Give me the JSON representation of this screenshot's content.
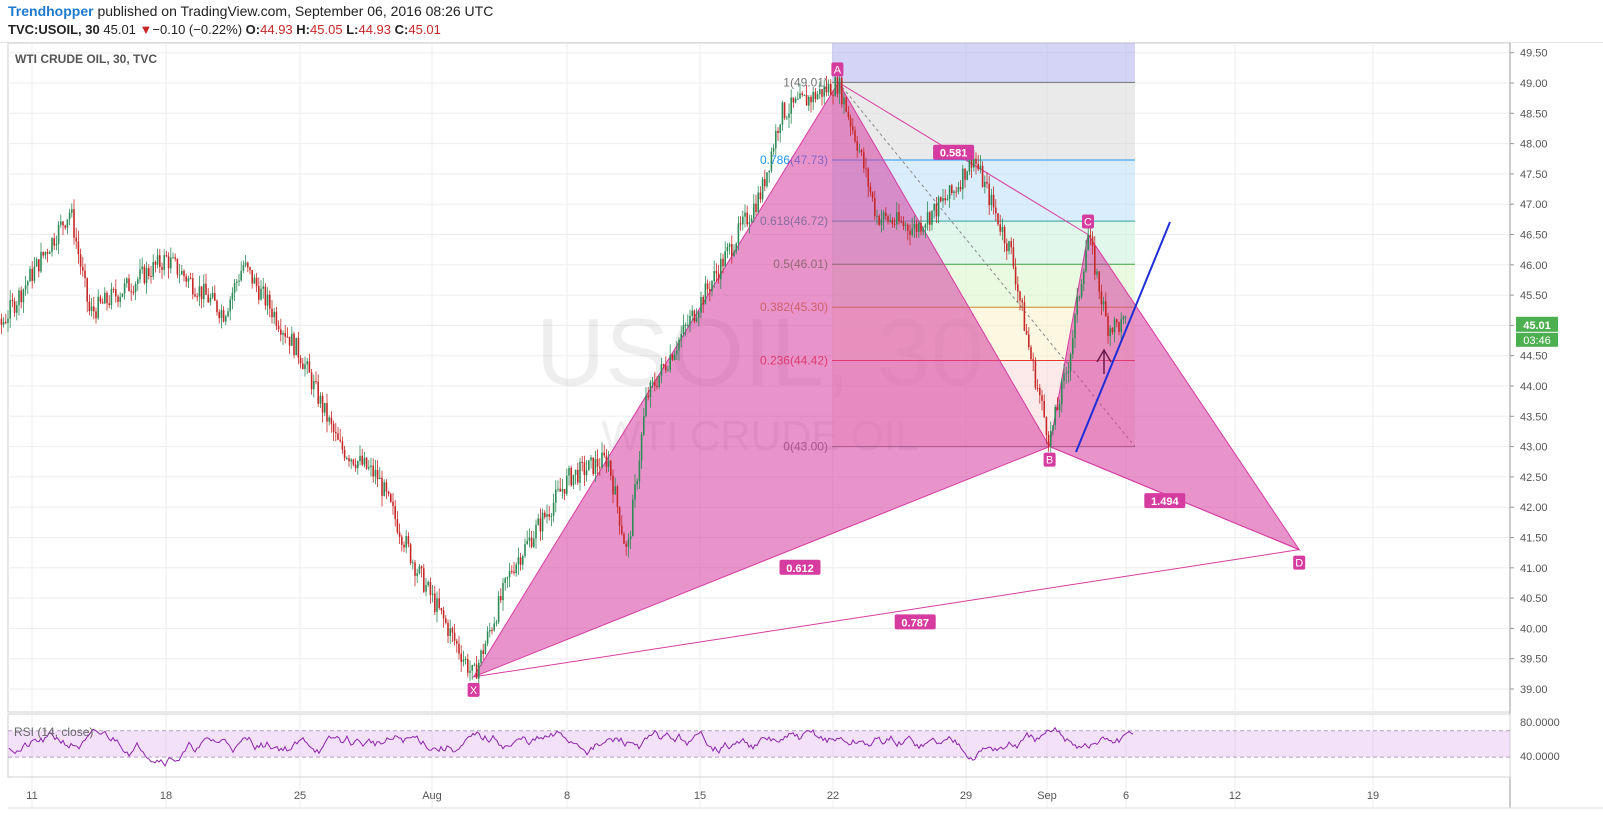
{
  "header": {
    "author": "Trendhopper",
    "published_text": " published on TradingView.com, September 06, 2016 08:26 UTC",
    "symbol": "TVC:USOIL, 30",
    "last": "45.01",
    "change": "−0.10 (−0.22%)",
    "open_label": "O:",
    "open": "44.93",
    "high_label": "H:",
    "high": "45.05",
    "low_label": "L:",
    "low": "44.93",
    "close_label": "C:",
    "close": "45.01"
  },
  "chart_data": [
    {
      "type": "candlestick",
      "title": "WTI CRUDE OIL, 30, TVC",
      "watermark_symbol": "USOIL, 30",
      "watermark_name": "WTI CRUDE OIL",
      "x_ticks": [
        "11",
        "18",
        "25",
        "Aug",
        "8",
        "15",
        "22",
        "29",
        "Sep",
        "6",
        "12",
        "19"
      ],
      "y_ticks": [
        "39.00",
        "39.50",
        "40.00",
        "40.50",
        "41.00",
        "41.50",
        "42.00",
        "42.50",
        "43.00",
        "43.50",
        "44.00",
        "44.50",
        "45.00",
        "45.50",
        "46.00",
        "46.50",
        "47.00",
        "47.50",
        "48.00",
        "48.50",
        "49.00",
        "49.50"
      ],
      "ylim": [
        38.7,
        49.7
      ],
      "price_key": [
        {
          "date": "Jul 7",
          "price": 45.7
        },
        {
          "date": "Jul 9",
          "price": 44.8
        },
        {
          "date": "Jul 13",
          "price": 46.9
        },
        {
          "date": "Jul 14",
          "price": 45.2
        },
        {
          "date": "Jul 18",
          "price": 46.1
        },
        {
          "date": "Jul 21",
          "price": 45.2
        },
        {
          "date": "Jul 22",
          "price": 46.0
        },
        {
          "date": "Jul 25",
          "price": 44.5
        },
        {
          "date": "Jul 27",
          "price": 43.0
        },
        {
          "date": "Jul 29",
          "price": 42.5
        },
        {
          "date": "Jul 31",
          "price": 41.0
        },
        {
          "date": "Aug 2",
          "price": 39.8
        },
        {
          "date": "Aug 3",
          "price": 39.2
        },
        {
          "date": "Aug 5",
          "price": 41.0
        },
        {
          "date": "Aug 8",
          "price": 42.5
        },
        {
          "date": "Aug 10",
          "price": 42.8
        },
        {
          "date": "Aug 11",
          "price": 41.2
        },
        {
          "date": "Aug 12",
          "price": 43.8
        },
        {
          "date": "Aug 15",
          "price": 45.5
        },
        {
          "date": "Aug 18",
          "price": 47.2
        },
        {
          "date": "Aug 19",
          "price": 48.5
        },
        {
          "date": "Aug 22",
          "price": 49.0
        },
        {
          "date": "Aug 23",
          "price": 48.0
        },
        {
          "date": "Aug 24",
          "price": 46.8
        },
        {
          "date": "Aug 26",
          "price": 46.6
        },
        {
          "date": "Aug 28",
          "price": 47.2
        },
        {
          "date": "Aug 29",
          "price": 47.8
        },
        {
          "date": "Aug 30",
          "price": 47.0
        },
        {
          "date": "Aug 31",
          "price": 46.2
        },
        {
          "date": "Sep 1",
          "price": 44.5
        },
        {
          "date": "Sep 2",
          "price": 43.1
        },
        {
          "date": "Sep 3",
          "price": 44.4
        },
        {
          "date": "Sep 4",
          "price": 46.5
        },
        {
          "date": "Sep 5",
          "price": 45.0
        },
        {
          "date": "Sep 6",
          "price": 45.0
        }
      ],
      "fibonacci": [
        {
          "label": "1(49.01)",
          "price": 49.01,
          "line": "#757575",
          "fill": "rgba(214,214,214,0.5)"
        },
        {
          "label": "0.786(47.73)",
          "price": 47.73,
          "line": "#2196f3",
          "fill": "rgba(187,222,251,0.55)"
        },
        {
          "label": "0.618(46.72)",
          "price": 46.72,
          "line": "#26a69a",
          "fill": "rgba(200,240,220,0.55)"
        },
        {
          "label": "0.5(46.01)",
          "price": 46.01,
          "line": "#43a047",
          "fill": "rgba(215,245,200,0.55)"
        },
        {
          "label": "0.382(45.30)",
          "price": 45.3,
          "line": "#c98a2a",
          "fill": "rgba(250,240,200,0.55)"
        },
        {
          "label": "0.236(44.42)",
          "price": 44.42,
          "line": "#e53935",
          "fill": "rgba(250,215,215,0.55)"
        },
        {
          "label": "0(43.00)",
          "price": 43.0,
          "line": "#757575",
          "fill": ""
        }
      ],
      "pattern_points": [
        {
          "label": "X",
          "date": "Aug 3",
          "price": 39.2
        },
        {
          "label": "A",
          "date": "Aug 22",
          "price": 49.01
        },
        {
          "label": "B",
          "date": "Sep 2",
          "price": 43.0
        },
        {
          "label": "C",
          "date": "Sep 4",
          "price": 46.5
        },
        {
          "label": "D",
          "date": "Sep 15",
          "price": 41.3
        }
      ],
      "ratios": [
        {
          "label": "0.612",
          "date": "Aug 20",
          "price": 41.0
        },
        {
          "label": "0.581",
          "date": "Aug 28",
          "price": 47.85
        },
        {
          "label": "1.494",
          "date": "Sep 8",
          "price": 42.1
        },
        {
          "label": "0.787",
          "date": "Aug 26",
          "price": 40.1
        }
      ],
      "last_price_label": "45.01",
      "countdown_label": "03:46",
      "colors": {
        "pattern": "#d63ca0",
        "trendline": "#1f2fd6",
        "up": "#2e8b57",
        "down": "#c62828",
        "price_tag": "#4caf50"
      }
    },
    {
      "type": "line",
      "title": "RSI (14, close)",
      "y_ticks": [
        "80.0000",
        "40.0000"
      ],
      "ylim": [
        0,
        100
      ],
      "bands": [
        30,
        70
      ],
      "color": "#8e24aa"
    }
  ]
}
